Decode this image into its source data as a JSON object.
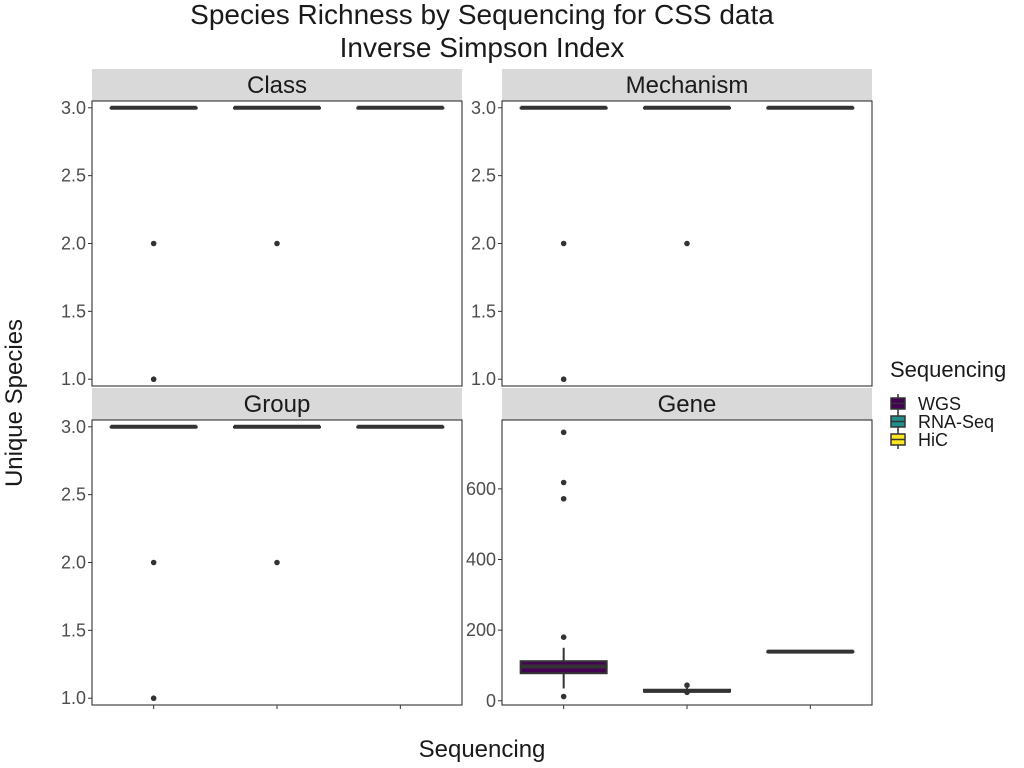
{
  "chart_data": {
    "type": "boxplot",
    "title": "Species Richness by Sequencing for CSS data",
    "subtitle": "Inverse Simpson Index",
    "xlabel": "Sequencing",
    "ylabel": "Unique Species",
    "categories": [
      "WGS",
      "RNA-Seq",
      "HiC"
    ],
    "legend": {
      "title": "Sequencing",
      "position": "right",
      "entries": [
        {
          "label": "WGS",
          "color": "#440154"
        },
        {
          "label": "RNA-Seq",
          "color": "#21908C"
        },
        {
          "label": "HiC",
          "color": "#FDE725"
        }
      ]
    },
    "grid": false,
    "panels": [
      {
        "name": "Class",
        "ylim": [
          0.95,
          3.05
        ],
        "yticks": [
          {
            "v": 1.0,
            "t": "1.0"
          },
          {
            "v": 1.5,
            "t": "1.5"
          },
          {
            "v": 2.0,
            "t": "2.0"
          },
          {
            "v": 2.5,
            "t": "2.5"
          },
          {
            "v": 3.0,
            "t": "3.0"
          }
        ],
        "boxes": [
          {
            "category": "WGS",
            "q1": 3,
            "median": 3,
            "q3": 3,
            "whisker_low": 3,
            "whisker_high": 3,
            "outliers": [
              2,
              1
            ]
          },
          {
            "category": "RNA-Seq",
            "q1": 3,
            "median": 3,
            "q3": 3,
            "whisker_low": 3,
            "whisker_high": 3,
            "outliers": [
              2
            ]
          },
          {
            "category": "HiC",
            "q1": 3,
            "median": 3,
            "q3": 3,
            "whisker_low": 3,
            "whisker_high": 3,
            "outliers": []
          }
        ]
      },
      {
        "name": "Mechanism",
        "ylim": [
          0.95,
          3.05
        ],
        "yticks": [
          {
            "v": 1.0,
            "t": "1.0"
          },
          {
            "v": 1.5,
            "t": "1.5"
          },
          {
            "v": 2.0,
            "t": "2.0"
          },
          {
            "v": 2.5,
            "t": "2.5"
          },
          {
            "v": 3.0,
            "t": "3.0"
          }
        ],
        "boxes": [
          {
            "category": "WGS",
            "q1": 3,
            "median": 3,
            "q3": 3,
            "whisker_low": 3,
            "whisker_high": 3,
            "outliers": [
              2,
              1
            ]
          },
          {
            "category": "RNA-Seq",
            "q1": 3,
            "median": 3,
            "q3": 3,
            "whisker_low": 3,
            "whisker_high": 3,
            "outliers": [
              2
            ]
          },
          {
            "category": "HiC",
            "q1": 3,
            "median": 3,
            "q3": 3,
            "whisker_low": 3,
            "whisker_high": 3,
            "outliers": []
          }
        ]
      },
      {
        "name": "Group",
        "ylim": [
          0.95,
          3.05
        ],
        "yticks": [
          {
            "v": 1.0,
            "t": "1.0"
          },
          {
            "v": 1.5,
            "t": "1.5"
          },
          {
            "v": 2.0,
            "t": "2.0"
          },
          {
            "v": 2.5,
            "t": "2.5"
          },
          {
            "v": 3.0,
            "t": "3.0"
          }
        ],
        "boxes": [
          {
            "category": "WGS",
            "q1": 3,
            "median": 3,
            "q3": 3,
            "whisker_low": 3,
            "whisker_high": 3,
            "outliers": [
              2,
              1
            ]
          },
          {
            "category": "RNA-Seq",
            "q1": 3,
            "median": 3,
            "q3": 3,
            "whisker_low": 3,
            "whisker_high": 3,
            "outliers": [
              2
            ]
          },
          {
            "category": "HiC",
            "q1": 3,
            "median": 3,
            "q3": 3,
            "whisker_low": 3,
            "whisker_high": 3,
            "outliers": []
          }
        ]
      },
      {
        "name": "Gene",
        "ylim": [
          -12,
          795
        ],
        "yticks": [
          {
            "v": 0,
            "t": "0"
          },
          {
            "v": 200,
            "t": "200"
          },
          {
            "v": 400,
            "t": "400"
          },
          {
            "v": 600,
            "t": "600"
          }
        ],
        "boxes": [
          {
            "category": "WGS",
            "q1": 78,
            "median": 97,
            "q3": 112,
            "whisker_low": 35,
            "whisker_high": 150,
            "outliers": [
              12,
              180,
              572,
              618,
              760
            ]
          },
          {
            "category": "RNA-Seq",
            "q1": 26,
            "median": 28,
            "q3": 31,
            "whisker_low": 24,
            "whisker_high": 36,
            "outliers": [
              44,
              24
            ]
          },
          {
            "category": "HiC",
            "q1": 138,
            "median": 139,
            "q3": 140,
            "whisker_low": 138,
            "whisker_high": 140,
            "outliers": []
          }
        ]
      }
    ]
  }
}
